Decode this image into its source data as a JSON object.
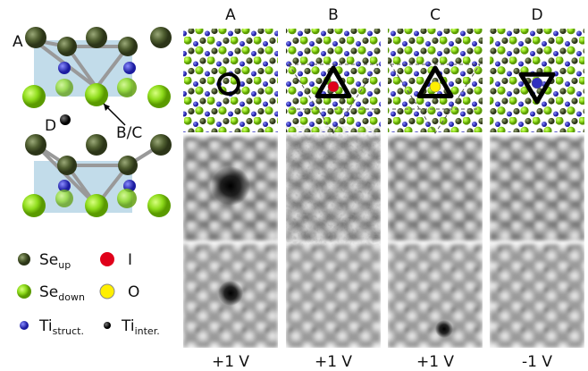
{
  "structure_labels": [
    "A",
    "B/C",
    "D"
  ],
  "columns": [
    {
      "label": "A",
      "bias": "+1 V"
    },
    {
      "label": "B",
      "bias": "+1 V"
    },
    {
      "label": "C",
      "bias": "+1 V"
    },
    {
      "label": "D",
      "bias": "-1 V"
    }
  ],
  "legend": [
    {
      "label": "Se",
      "subscript": "up"
    },
    {
      "label": "I"
    },
    {
      "label": "Se",
      "subscript": "down"
    },
    {
      "label": "O"
    },
    {
      "label": "Ti",
      "subscript": "struct."
    },
    {
      "label": "Ti",
      "subscript": "inter."
    }
  ]
}
